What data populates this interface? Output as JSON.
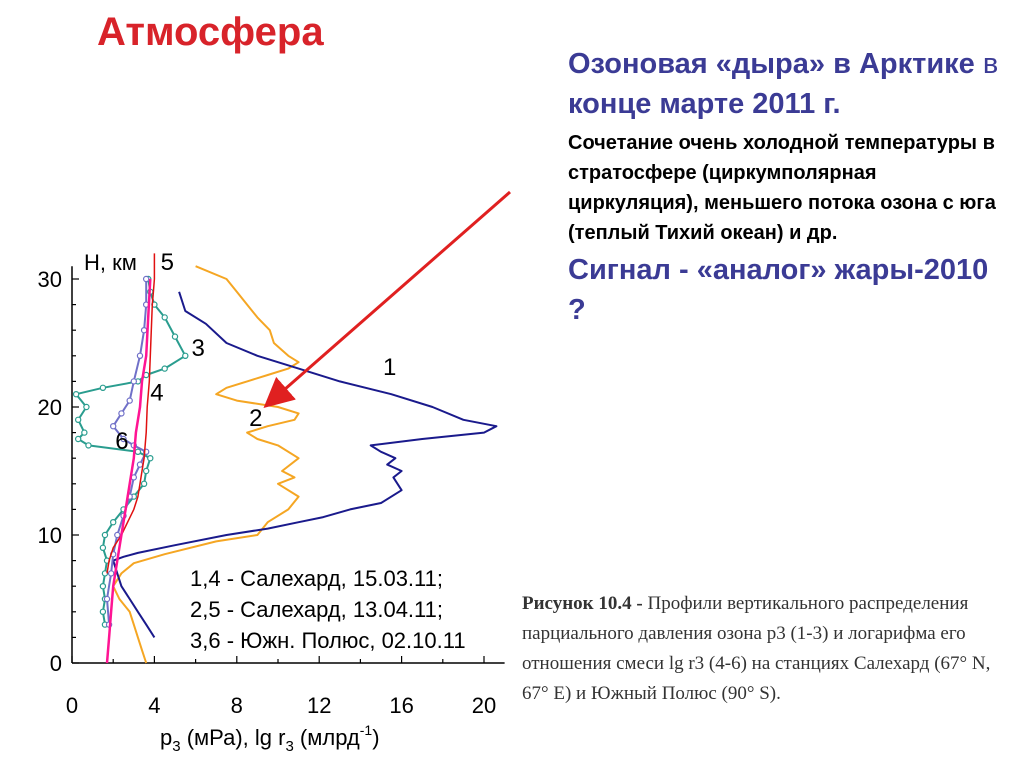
{
  "slide_title": "Атмосфера",
  "headline": {
    "part1": "Озоновая «дыра» в Арктике",
    "part2": " в ",
    "part3": "конце марте 2011 г."
  },
  "body_text": "Сочетание очень холодной температуры в стратосфере (циркумполярная циркуляция), меньшего потока озона с юга (теплый Тихий океан) и др.",
  "signal_text": "Сигнал - «аналог» жары-2010 ?",
  "caption": {
    "label": "Рисунок 10.4 -",
    "text": " Профили вертикального распределения парциального давления озона p3 (1-3) и логарифма его отношения смеси lg r3 (4-6) на станциях Салехард (67° N, 67° E) и Южный Полюс (90° S)."
  },
  "colors": {
    "title": "#d8232a",
    "headline": "#3b3b95",
    "arrow": "#e02020",
    "curve_1": "#1a1a8c",
    "curve_2": "#f5a623",
    "curve_3": "#2a9d8f",
    "curve_4": "#ff1493",
    "curve_5": "#e01010",
    "curve_6": "#7070c8"
  },
  "chart_data": {
    "type": "line",
    "y_axis_label": "H, км",
    "x_axis_label": {
      "base": "p",
      "sub1": "3",
      "mid": " (мРа), lg r",
      "sub2": "3",
      "tail": " (млрд",
      "sup": "-1",
      "close": ")"
    },
    "xlim": [
      0,
      21
    ],
    "ylim": [
      0,
      31
    ],
    "x_ticks": [
      0,
      4,
      8,
      12,
      16,
      20
    ],
    "y_ticks": [
      0,
      10,
      20,
      30
    ],
    "legend": [
      "1,4 - Салехард, 15.03.11;",
      "2,5 - Салехард, 13.04.11;",
      "3,6 - Южн. Полюс, 02.10.11"
    ],
    "curve_labels": [
      "1",
      "2",
      "3",
      "4",
      "5",
      "6"
    ],
    "series": [
      {
        "name": "1",
        "x": [
          4.0,
          3.6,
          3.2,
          2.8,
          2.4,
          2.2,
          2.0,
          2.5,
          3.2,
          5.0,
          7.5,
          9.5,
          11.0,
          12.2,
          13.5,
          15.0,
          16.0,
          15.6,
          16.0,
          15.3,
          15.7,
          15.0,
          14.5,
          17.0,
          20.0,
          20.6,
          19.0,
          17.5,
          15.5,
          13.0,
          11.0,
          9.0,
          7.5,
          6.5,
          5.5,
          5.2
        ],
        "y": [
          2.0,
          3.0,
          4.0,
          5.0,
          6.0,
          7.0,
          8.0,
          8.3,
          8.6,
          9.2,
          10.0,
          10.5,
          11.0,
          11.4,
          12.0,
          12.5,
          13.5,
          14.5,
          15.0,
          15.5,
          16.0,
          16.5,
          17.0,
          17.5,
          18.0,
          18.5,
          19.0,
          20.0,
          21.0,
          22.0,
          23.0,
          24.0,
          25.0,
          26.5,
          27.5,
          29.0
        ]
      },
      {
        "name": "2",
        "x": [
          3.6,
          3.4,
          3.2,
          3.0,
          2.8,
          2.3,
          2.0,
          2.4,
          3.0,
          4.5,
          7.0,
          9.0,
          9.5,
          10.5,
          11.0,
          10.0,
          10.8,
          10.2,
          11.0,
          10.0,
          9.0,
          8.5,
          9.5,
          10.8,
          11.0,
          10.0,
          8.0,
          7.0,
          7.5,
          8.5,
          9.5,
          10.5,
          11.0,
          10.5,
          9.8,
          9.6,
          9.0,
          8.5,
          8.0,
          7.5,
          6.0
        ],
        "y": [
          0.0,
          1.0,
          2.0,
          3.0,
          4.0,
          5.0,
          6.0,
          7.0,
          7.8,
          8.5,
          9.5,
          10.0,
          11.0,
          12.0,
          13.0,
          14.0,
          14.5,
          15.0,
          16.0,
          17.0,
          17.5,
          18.0,
          18.5,
          19.0,
          19.5,
          20.0,
          20.5,
          21.0,
          21.5,
          22.0,
          22.5,
          23.0,
          23.5,
          24.0,
          25.0,
          26.0,
          27.0,
          28.0,
          29.0,
          30.0,
          31.0
        ]
      },
      {
        "name": "3",
        "x": [
          1.6,
          1.5,
          1.6,
          1.5,
          1.6,
          1.7,
          1.5,
          1.6,
          2.0,
          2.5,
          3.0,
          3.5,
          3.6,
          3.8,
          3.2,
          0.8,
          0.3,
          0.6,
          0.3,
          0.7,
          0.2,
          1.5,
          3.2,
          3.6,
          4.5,
          5.5,
          5.0,
          4.5,
          4.0,
          3.8,
          3.7
        ],
        "y": [
          3.0,
          4.0,
          5.0,
          6.0,
          7.0,
          8.0,
          9.0,
          10.0,
          11.0,
          12.0,
          13.0,
          14.0,
          15.0,
          16.0,
          16.5,
          17.0,
          17.5,
          18.0,
          19.0,
          20.0,
          21.0,
          21.5,
          22.0,
          22.5,
          23.0,
          24.0,
          25.5,
          27.0,
          28.0,
          29.0,
          30.0
        ]
      },
      {
        "name": "4",
        "x": [
          1.7,
          1.8,
          1.9,
          2.0,
          2.2,
          2.4,
          2.6,
          2.8,
          3.0,
          3.1,
          3.3,
          3.4,
          3.6,
          3.7,
          3.8
        ],
        "y": [
          0.0,
          2.0,
          4.0,
          6.0,
          8.0,
          10.0,
          12.0,
          14.0,
          16.0,
          18.0,
          20.0,
          22.0,
          24.0,
          27.0,
          30.0
        ]
      },
      {
        "name": "5",
        "x": [
          1.7,
          1.8,
          2.0,
          2.4,
          2.7,
          3.0,
          3.2,
          3.3,
          3.4,
          3.5,
          3.6,
          3.65,
          3.75,
          3.8,
          3.85,
          3.9,
          3.95,
          4.0,
          4.0
        ],
        "y": [
          7.0,
          8.0,
          9.0,
          10.0,
          11.0,
          12.0,
          13.0,
          14.0,
          15.0,
          16.0,
          18.0,
          20.0,
          22.0,
          24.0,
          26.0,
          28.0,
          29.0,
          30.0,
          32.0
        ]
      },
      {
        "name": "6",
        "x": [
          1.8,
          1.7,
          1.9,
          2.0,
          2.2,
          2.5,
          2.8,
          3.0,
          3.3,
          3.6,
          3.0,
          2.5,
          2.0,
          2.4,
          2.8,
          3.0,
          3.3,
          3.5,
          3.6,
          3.6
        ],
        "y": [
          3.0,
          5.0,
          7.0,
          8.5,
          10.0,
          11.5,
          13.0,
          14.5,
          15.5,
          16.5,
          17.0,
          17.5,
          18.5,
          19.5,
          20.5,
          22.0,
          24.0,
          26.0,
          28.0,
          30.0
        ]
      }
    ]
  }
}
